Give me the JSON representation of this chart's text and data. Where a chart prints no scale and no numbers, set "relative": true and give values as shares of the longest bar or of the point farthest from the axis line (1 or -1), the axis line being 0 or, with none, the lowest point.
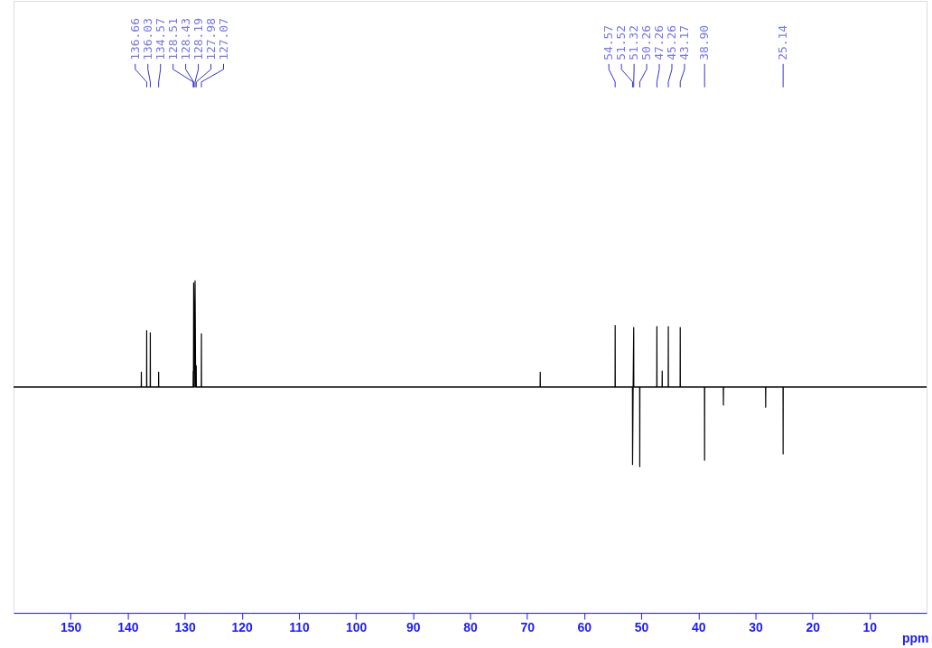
{
  "chart_data": {
    "type": "line",
    "relative": true,
    "xlabel": "ppm",
    "xlim": [
      160,
      0
    ],
    "xticks": [
      150,
      140,
      130,
      120,
      110,
      100,
      90,
      80,
      70,
      60,
      50,
      40,
      30,
      20,
      10
    ],
    "x": [
      160,
      137.62,
      137.6,
      137.58,
      136.68,
      136.66,
      136.64,
      136.05,
      136.03,
      136.01,
      134.59,
      134.57,
      134.55,
      128.53,
      128.51,
      128.47,
      128.43,
      128.31,
      128.19,
      128.08,
      127.98,
      127.96,
      127.09,
      127.07,
      127.05,
      67.72,
      67.7,
      67.68,
      54.59,
      54.57,
      54.55,
      51.54,
      51.52,
      51.42,
      51.32,
      51.3,
      50.28,
      50.26,
      50.24,
      47.28,
      47.26,
      47.24,
      46.35,
      46.33,
      46.31,
      45.28,
      45.26,
      45.24,
      43.19,
      43.17,
      43.15,
      38.92,
      38.9,
      38.88,
      35.62,
      35.6,
      35.58,
      28.22,
      28.2,
      28.18,
      25.16,
      25.14,
      25.12,
      0
    ],
    "series": [
      {
        "color": "#000000",
        "values": [
          0,
          0,
          0.14,
          0,
          0,
          0.53,
          0,
          0,
          0.51,
          0,
          0,
          0.14,
          0,
          0,
          0.15,
          0,
          0.98,
          0,
          1.0,
          0,
          0.2,
          0,
          0,
          0.5,
          0,
          0,
          0.14,
          0,
          0,
          0.58,
          0,
          0,
          -0.73,
          0,
          0.56,
          0,
          0,
          -0.75,
          0,
          0,
          0.57,
          0,
          0,
          0.15,
          0,
          0,
          0.57,
          0,
          0,
          0.56,
          0,
          0,
          -0.69,
          0,
          0,
          -0.17,
          0,
          0,
          -0.19,
          0,
          0,
          -0.63,
          0,
          0
        ]
      }
    ],
    "annotations": [
      {
        "text": "136.66",
        "x": 136.66
      },
      {
        "text": "136.03",
        "x": 136.03
      },
      {
        "text": "134.57",
        "x": 134.57
      },
      {
        "text": "128.51",
        "x": 128.51
      },
      {
        "text": "128.43",
        "x": 128.43
      },
      {
        "text": "128.19",
        "x": 128.19
      },
      {
        "text": "127.98",
        "x": 127.98
      },
      {
        "text": "127.07",
        "x": 127.07
      },
      {
        "text": "54.57",
        "x": 54.57
      },
      {
        "text": "51.52",
        "x": 51.52
      },
      {
        "text": "51.32",
        "x": 51.32
      },
      {
        "text": "50.26",
        "x": 50.26
      },
      {
        "text": "47.26",
        "x": 47.26
      },
      {
        "text": "45.26",
        "x": 45.26
      },
      {
        "text": "43.17",
        "x": 43.17
      },
      {
        "text": "38.90",
        "x": 38.9
      },
      {
        "text": "25.14",
        "x": 25.14
      }
    ]
  }
}
